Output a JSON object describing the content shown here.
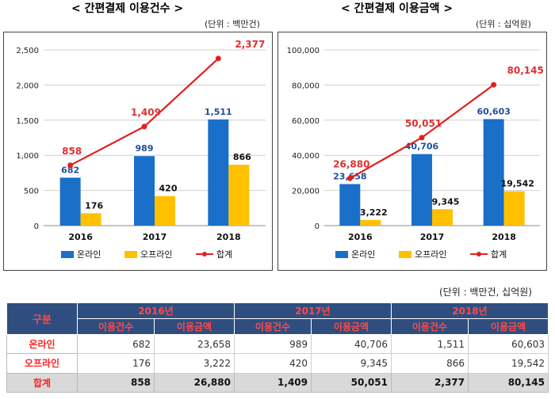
{
  "charts": {
    "count_title": "< 간편결제 이용건수 >",
    "count_unit": "(단위 : 백만건)",
    "amount_title": "< 간편결제 이용금액 >",
    "amount_unit": "(단위 : 십억원)"
  },
  "colors": {
    "online": "#1a6fc9",
    "offline": "#ffc000",
    "total": "#e02020",
    "total_label": "#e03030",
    "online_label": "#1f4e9a"
  },
  "chart_data": [
    {
      "type": "bar",
      "title": "< 간편결제 이용건수 >",
      "unit": "(단위 : 백만건)",
      "categories": [
        "2016",
        "2017",
        "2018"
      ],
      "ylim": [
        0,
        2500
      ],
      "yticks": [
        0,
        500,
        1000,
        1500,
        2000,
        2500
      ],
      "ytick_labels": [
        "0",
        "500",
        "1,000",
        "1,500",
        "2,000",
        "2,500"
      ],
      "grid": true,
      "legend_position": "bottom",
      "series": [
        {
          "name": "온라인",
          "kind": "bar",
          "values": [
            682,
            989,
            1511
          ],
          "labels": [
            "682",
            "989",
            "1,511"
          ]
        },
        {
          "name": "오프라인",
          "kind": "bar",
          "values": [
            176,
            420,
            866
          ],
          "labels": [
            "176",
            "420",
            "866"
          ]
        },
        {
          "name": "합계",
          "kind": "line",
          "values": [
            858,
            1409,
            2377
          ],
          "labels": [
            "858",
            "1,409",
            "2,377"
          ]
        }
      ]
    },
    {
      "type": "bar",
      "title": "< 간편결제 이용금액 >",
      "unit": "(단위 : 십억원)",
      "categories": [
        "2016",
        "2017",
        "2018"
      ],
      "ylim": [
        0,
        100000
      ],
      "yticks": [
        0,
        20000,
        40000,
        60000,
        80000,
        100000
      ],
      "ytick_labels": [
        "0",
        "20,000",
        "40,000",
        "60,000",
        "80,000",
        "100,000"
      ],
      "grid": true,
      "legend_position": "bottom",
      "series": [
        {
          "name": "온라인",
          "kind": "bar",
          "values": [
            23658,
            40706,
            60603
          ],
          "labels": [
            "23,658",
            "40,706",
            "60,603"
          ]
        },
        {
          "name": "오프라인",
          "kind": "bar",
          "values": [
            3222,
            9345,
            19542
          ],
          "labels": [
            "3,222",
            "9,345",
            "19,542"
          ]
        },
        {
          "name": "합계",
          "kind": "line",
          "values": [
            26880,
            50051,
            80145
          ],
          "labels": [
            "26,880",
            "50,051",
            "80,145"
          ]
        }
      ]
    }
  ],
  "table": {
    "unit": "(단위 : 백만건, 십억원)",
    "header_label": "구분",
    "years": [
      "2016년",
      "2017년",
      "2018년"
    ],
    "sub_headers": [
      "이용건수",
      "이용금액"
    ],
    "rows": [
      {
        "label": "온라인",
        "values": [
          "682",
          "23,658",
          "989",
          "40,706",
          "1,511",
          "60,603"
        ]
      },
      {
        "label": "오프라인",
        "values": [
          "176",
          "3,222",
          "420",
          "9,345",
          "866",
          "19,542"
        ]
      },
      {
        "label": "합계",
        "values": [
          "858",
          "26,880",
          "1,409",
          "50,051",
          "2,377",
          "80,145"
        ]
      }
    ]
  }
}
